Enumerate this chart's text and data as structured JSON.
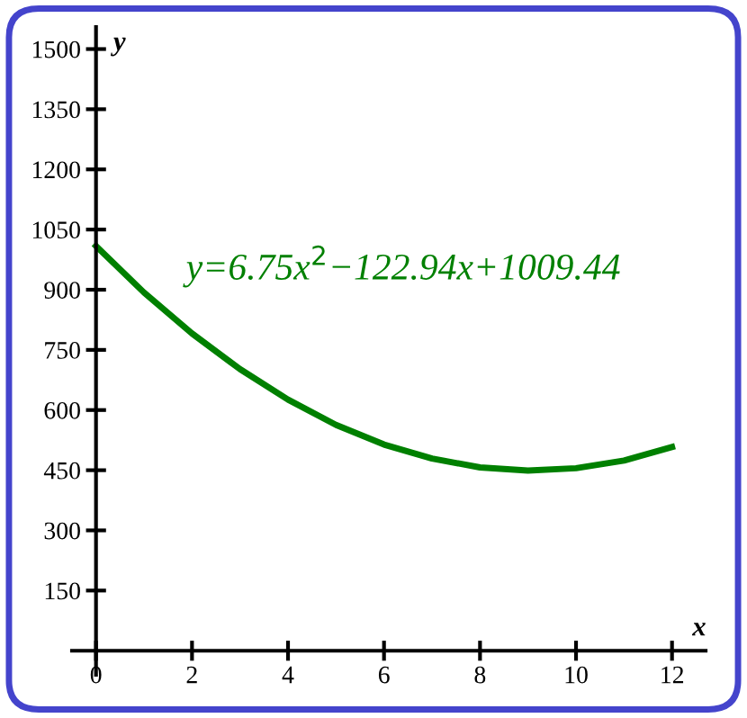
{
  "chart_data": {
    "type": "line",
    "xlabel": "x",
    "ylabel": "y",
    "x": [
      0,
      1,
      2,
      3,
      4,
      5,
      6,
      7,
      8,
      9,
      10,
      11,
      12
    ],
    "series": [
      {
        "color": "#008000",
        "values": [
          1009,
          893,
          791,
          702,
          626,
          563,
          514,
          479,
          457,
          449,
          455,
          474,
          508
        ]
      }
    ],
    "xlim": [
      -0.5,
      12.7
    ],
    "ylim": [
      -60,
      1555
    ],
    "xticks": [
      0,
      2,
      4,
      6,
      8,
      10,
      12
    ],
    "yticks": [
      150,
      300,
      450,
      600,
      750,
      900,
      1050,
      1200,
      1350,
      1500
    ],
    "annotations": [
      "y=6.75x$^{2}$−122.94x+1009.44"
    ],
    "grid": false,
    "marker": "none",
    "line_style": "solid"
  }
}
